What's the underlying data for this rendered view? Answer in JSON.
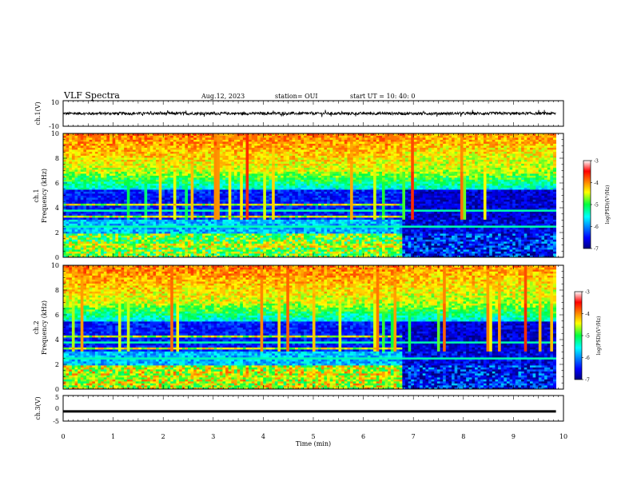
{
  "header": {
    "title": "VLF Spectra",
    "date": "Aug.12, 2023",
    "station": "station= OUI",
    "start": "start  UT =   10: 40: 0"
  },
  "chart_data": [
    {
      "id": "ch1-waveform",
      "type": "line",
      "ylabel": "ch.1(V)",
      "ylim": [
        -10,
        10
      ],
      "y_ticks": [
        "10",
        "-10"
      ],
      "xlim": [
        0,
        10
      ],
      "description": "dense waveform around 0 V, amplitude about ±2 V",
      "color": "#000000"
    },
    {
      "id": "ch1-spectrogram",
      "type": "heatmap",
      "ylabel": "ch.1\nFrequency  (kHz)",
      "ylim": [
        0,
        10
      ],
      "y_ticks": [
        "0",
        "2",
        "4",
        "6",
        "8",
        "10"
      ],
      "xlim": [
        0,
        10
      ],
      "data_end_min": 9.85,
      "regime_change_min": 6.8,
      "colorbar": {
        "label": "log(PSD)(V²/Hz)",
        "range": [
          -7,
          -3
        ],
        "ticks": [
          "-3",
          "-4",
          "-5",
          "-6",
          "-7"
        ]
      }
    },
    {
      "id": "ch2-spectrogram",
      "type": "heatmap",
      "ylabel": "ch.2\nFrequency  (kHz)",
      "ylim": [
        0,
        10
      ],
      "y_ticks": [
        "0",
        "2",
        "4",
        "6",
        "8",
        "10"
      ],
      "xlim": [
        0,
        10
      ],
      "data_end_min": 9.85,
      "regime_change_min": 6.8,
      "colorbar": {
        "label": "log(PSD)(V²/Hz)",
        "range": [
          -7,
          -3
        ],
        "ticks": [
          "-3",
          "-4",
          "-5",
          "-6",
          "-7"
        ]
      }
    },
    {
      "id": "ch3-waveform",
      "type": "line",
      "ylabel": "ch.3(V)",
      "ylim": [
        -5,
        5
      ],
      "y_ticks": [
        "5",
        "0",
        "-5"
      ],
      "xlim": [
        0,
        10
      ],
      "values_const": -1.2,
      "color": "#000000"
    }
  ],
  "xaxis": {
    "label": "Time  (min)",
    "ticks": [
      "0",
      "1",
      "2",
      "3",
      "4",
      "5",
      "6",
      "7",
      "8",
      "9",
      "10"
    ]
  }
}
